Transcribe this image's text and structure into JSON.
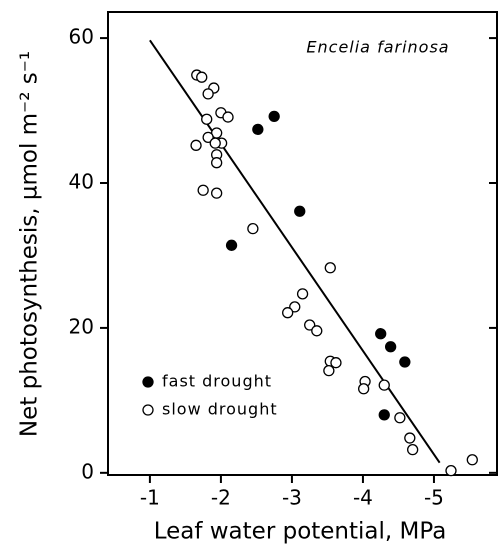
{
  "chart_data": {
    "type": "scatter",
    "annotation": "Encelia farinosa",
    "x_label": "Leaf water potential, MPa",
    "y_label": "Net photosynthesis, µmol m⁻² s⁻¹",
    "xlim": [
      -0.41,
      -5.93
    ],
    "ylim": [
      -0.3,
      63.6
    ],
    "xticks": [
      -1,
      -2,
      -3,
      -4,
      -5
    ],
    "yticks": [
      0,
      20,
      40,
      60
    ],
    "series": [
      {
        "name": "fast drought",
        "color": "#000000",
        "filled": true,
        "x": [
          -2.52,
          -2.75,
          -2.15,
          -3.11,
          -4.25,
          -4.39,
          -4.59,
          -4.3
        ],
        "y": [
          47.4,
          49.2,
          31.4,
          36.1,
          19.2,
          17.4,
          15.3,
          8.0
        ]
      },
      {
        "name": "slow drought",
        "color": "#000000",
        "filled": false,
        "x": [
          -1.66,
          -1.73,
          -1.9,
          -1.82,
          -2.0,
          -2.1,
          -1.8,
          -1.94,
          -1.82,
          -2.01,
          -1.65,
          -1.92,
          -1.94,
          -1.94,
          -1.75,
          -1.94,
          -2.45,
          -3.54,
          -3.15,
          -3.04,
          -2.94,
          -3.25,
          -3.35,
          -3.54,
          -3.62,
          -3.52,
          -4.03,
          -4.01,
          -4.3,
          -4.52,
          -4.66,
          -4.7,
          -5.24,
          -5.54
        ],
        "y": [
          54.9,
          54.6,
          53.1,
          52.3,
          49.7,
          49.1,
          48.8,
          46.9,
          46.3,
          45.5,
          45.2,
          45.5,
          43.9,
          42.8,
          39.0,
          38.6,
          33.7,
          28.3,
          24.7,
          22.9,
          22.1,
          20.4,
          19.6,
          15.4,
          15.2,
          14.1,
          12.6,
          11.6,
          12.1,
          7.6,
          4.8,
          3.2,
          0.3,
          1.8
        ]
      }
    ],
    "fit": {
      "x": [
        -1,
        -5.08
      ],
      "y": [
        59.7,
        1.4
      ]
    }
  }
}
